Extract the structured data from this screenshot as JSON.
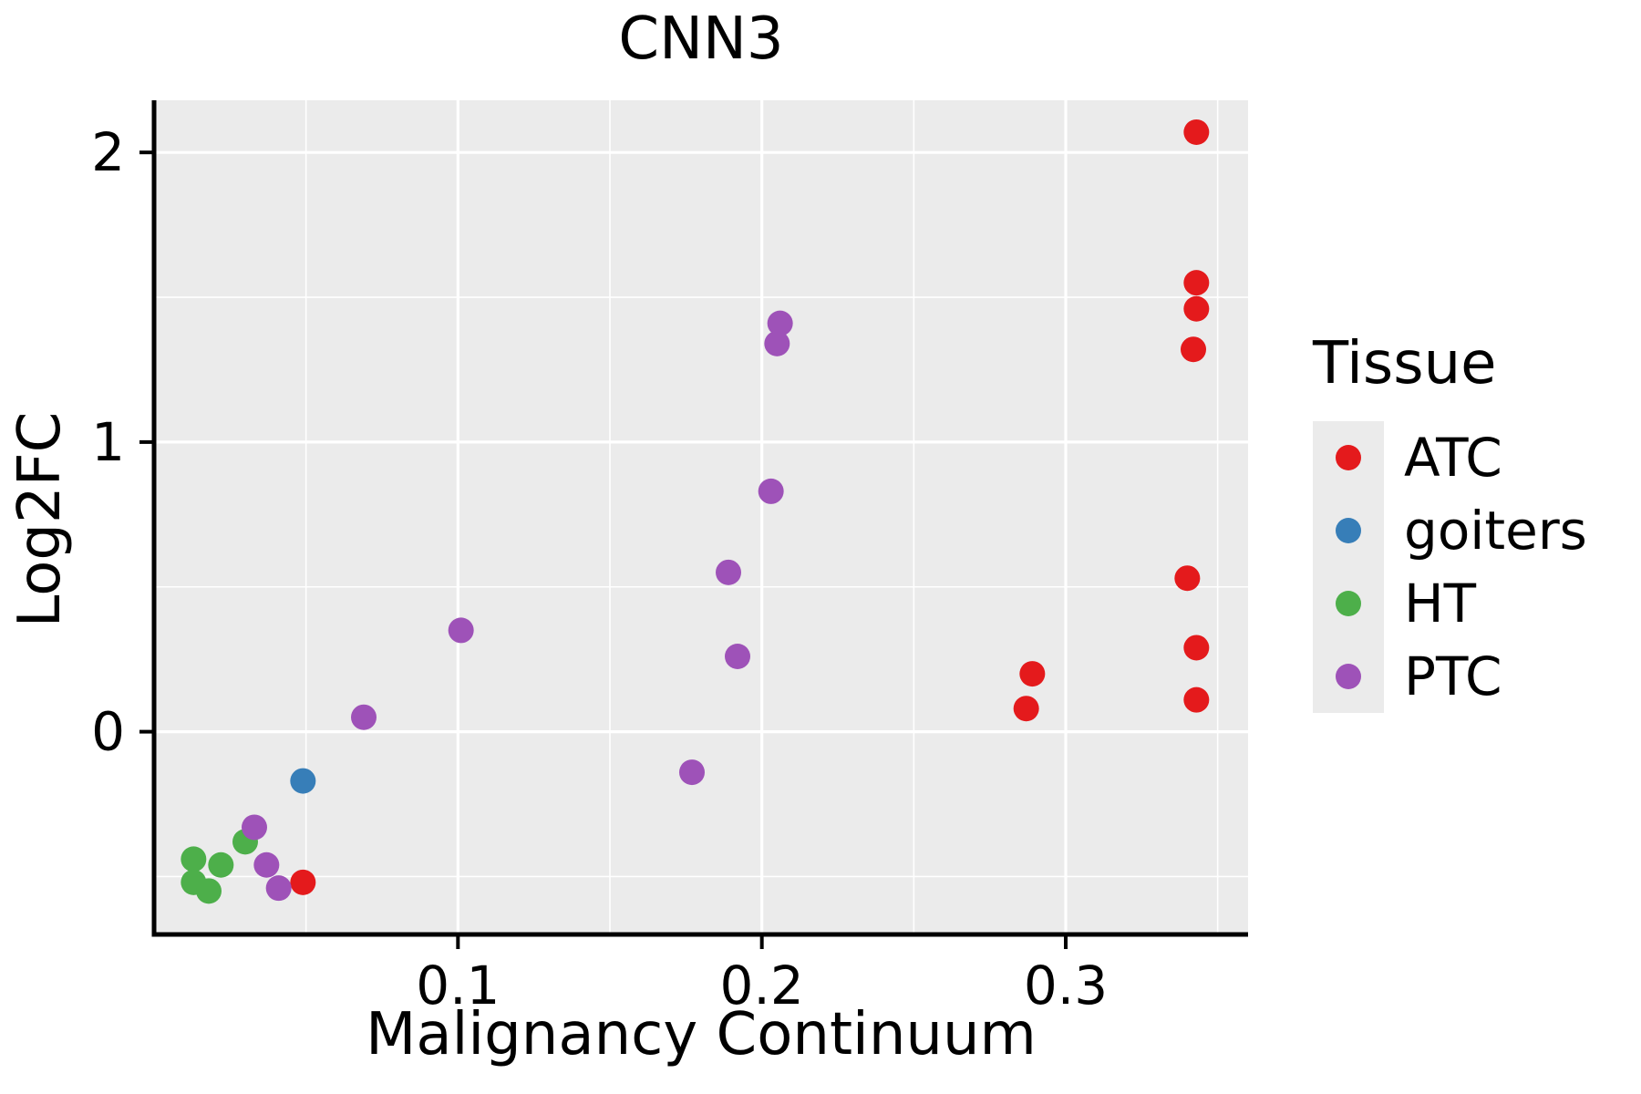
{
  "chart_data": {
    "type": "scatter",
    "title": "CNN3",
    "xlabel": "Malignancy Continuum",
    "ylabel": "Log2FC",
    "legend_title": "Tissue",
    "legend_position": "right",
    "grid": true,
    "panel_bg": "#ebebeb",
    "grid_color": "#ffffff",
    "axis_color": "#000000",
    "xlim": [
      0,
      0.36
    ],
    "ylim": [
      -0.7,
      2.18
    ],
    "x_ticks": [
      {
        "value": 0.1,
        "label": "0.1"
      },
      {
        "value": 0.2,
        "label": "0.2"
      },
      {
        "value": 0.3,
        "label": "0.3"
      }
    ],
    "y_ticks": [
      {
        "value": 0,
        "label": "0"
      },
      {
        "value": 1,
        "label": "1"
      },
      {
        "value": 2,
        "label": "2"
      }
    ],
    "x_minor": [
      0.05,
      0.15,
      0.25,
      0.35
    ],
    "y_minor": [
      -0.5,
      0.5,
      1.5
    ],
    "series": [
      {
        "name": "ATC",
        "color": "#e41a1c",
        "points": [
          [
            0.049,
            -0.52
          ],
          [
            0.287,
            0.08
          ],
          [
            0.289,
            0.2
          ],
          [
            0.34,
            0.53
          ],
          [
            0.343,
            0.29
          ],
          [
            0.343,
            0.11
          ],
          [
            0.342,
            1.32
          ],
          [
            0.343,
            1.46
          ],
          [
            0.343,
            1.55
          ],
          [
            0.343,
            2.07
          ]
        ]
      },
      {
        "name": "goiters",
        "color": "#377eb8",
        "points": [
          [
            0.049,
            -0.17
          ]
        ]
      },
      {
        "name": "HT",
        "color": "#4daf4a",
        "points": [
          [
            0.013,
            -0.44
          ],
          [
            0.013,
            -0.52
          ],
          [
            0.018,
            -0.55
          ],
          [
            0.022,
            -0.46
          ],
          [
            0.03,
            -0.38
          ]
        ]
      },
      {
        "name": "PTC",
        "color": "#9e52b8",
        "points": [
          [
            0.033,
            -0.33
          ],
          [
            0.037,
            -0.46
          ],
          [
            0.041,
            -0.54
          ],
          [
            0.069,
            0.05
          ],
          [
            0.101,
            0.35
          ],
          [
            0.177,
            -0.14
          ],
          [
            0.189,
            0.55
          ],
          [
            0.192,
            0.26
          ],
          [
            0.203,
            0.83
          ],
          [
            0.205,
            1.34
          ],
          [
            0.206,
            1.41
          ]
        ]
      }
    ]
  }
}
